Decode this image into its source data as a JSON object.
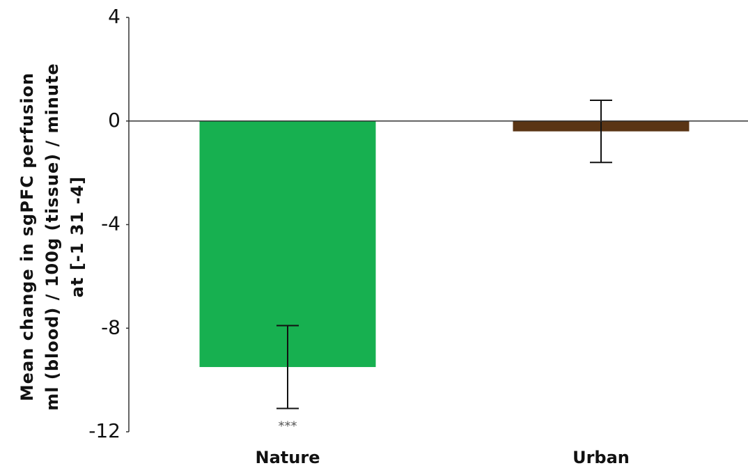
{
  "chart_data": {
    "type": "bar",
    "y_label": [
      "Mean change in sgPFC perfusion",
      "ml (blood) / 100g (tissue) / minute",
      "at [-1 31 -4]"
    ],
    "categories": [
      "Nature",
      "Urban"
    ],
    "values": [
      -9.5,
      -0.4
    ],
    "errors": [
      1.6,
      1.2
    ],
    "colors": [
      "#17b050",
      "#5a3515"
    ],
    "annotation": "***",
    "ylim": [
      -12,
      4
    ],
    "yticks": [
      4,
      0,
      -4,
      -8,
      -12
    ],
    "grid": false
  }
}
